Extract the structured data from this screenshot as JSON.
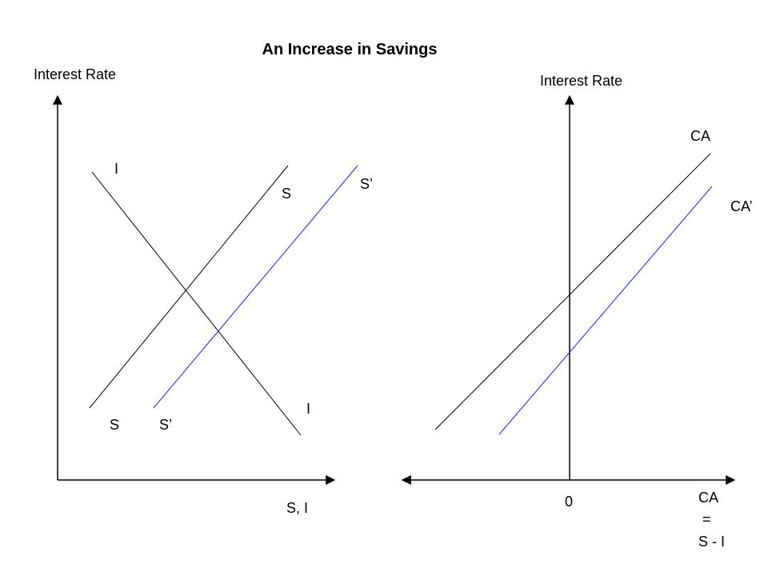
{
  "title": "An Increase in Savings",
  "colors": {
    "axis": "#000000",
    "original_curve": "#000000",
    "shifted_curve": "#1a1aff"
  },
  "left_panel": {
    "y_axis_label": "Interest Rate",
    "x_axis_label": "S, I",
    "curves": [
      {
        "name": "I",
        "top_label": "I",
        "bottom_label": "I",
        "slope": "downward",
        "color": "#000000"
      },
      {
        "name": "S",
        "top_label": "S",
        "bottom_label": "S",
        "slope": "upward",
        "color": "#000000"
      },
      {
        "name": "S'",
        "top_label": "S’",
        "bottom_label": "S’",
        "slope": "upward",
        "color": "#1a1aff"
      }
    ]
  },
  "right_panel": {
    "y_axis_label": "Interest Rate",
    "origin_label": "0",
    "x_axis_label_lines": [
      "CA",
      "=",
      "S - I"
    ],
    "curves": [
      {
        "name": "CA",
        "label": "CA",
        "slope": "upward",
        "color": "#000000"
      },
      {
        "name": "CA'",
        "label": "CA’",
        "slope": "upward",
        "color": "#1a1aff"
      }
    ]
  }
}
